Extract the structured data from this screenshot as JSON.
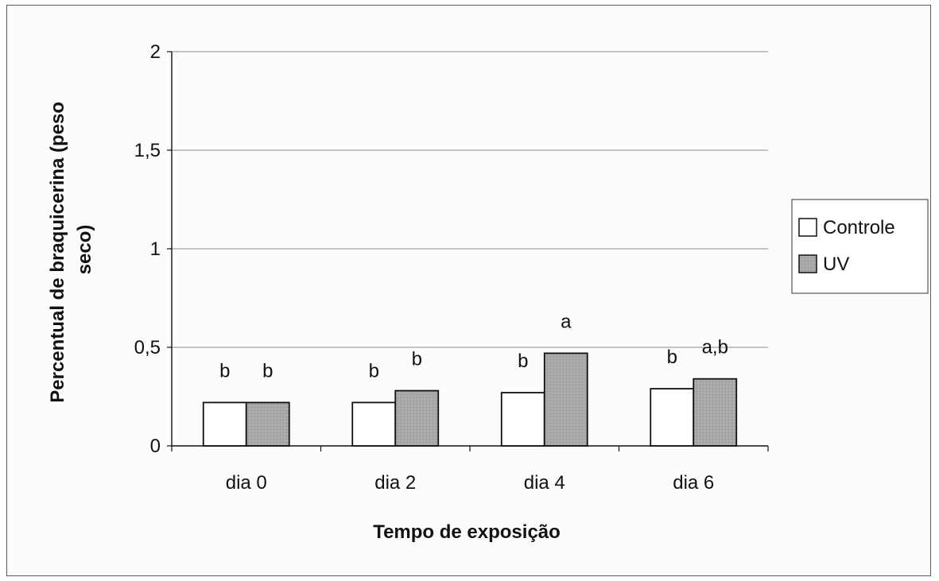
{
  "chart_data": {
    "type": "bar",
    "title": "",
    "xlabel": "Tempo de exposição",
    "ylabel_lines": [
      "Percentual de braquicerina (peso",
      "seco)"
    ],
    "categories": [
      "dia 0",
      "dia 2",
      "dia 4",
      "dia 6"
    ],
    "ylim": [
      0,
      2
    ],
    "yticks": [
      0,
      0.5,
      1,
      1.5,
      2
    ],
    "ytick_labels": [
      "0",
      "0,5",
      "1",
      "1,5",
      "2"
    ],
    "grid": true,
    "legend_position": "right",
    "series": [
      {
        "name": "Controle",
        "color": "#ffffff",
        "values": [
          0.22,
          0.22,
          0.27,
          0.29
        ],
        "labels": [
          "b",
          "b",
          "b",
          "b"
        ]
      },
      {
        "name": "UV",
        "color": "#a8a8a8",
        "values": [
          0.22,
          0.28,
          0.47,
          0.34
        ],
        "labels": [
          "b",
          "b",
          "a",
          "a,b"
        ]
      }
    ]
  }
}
